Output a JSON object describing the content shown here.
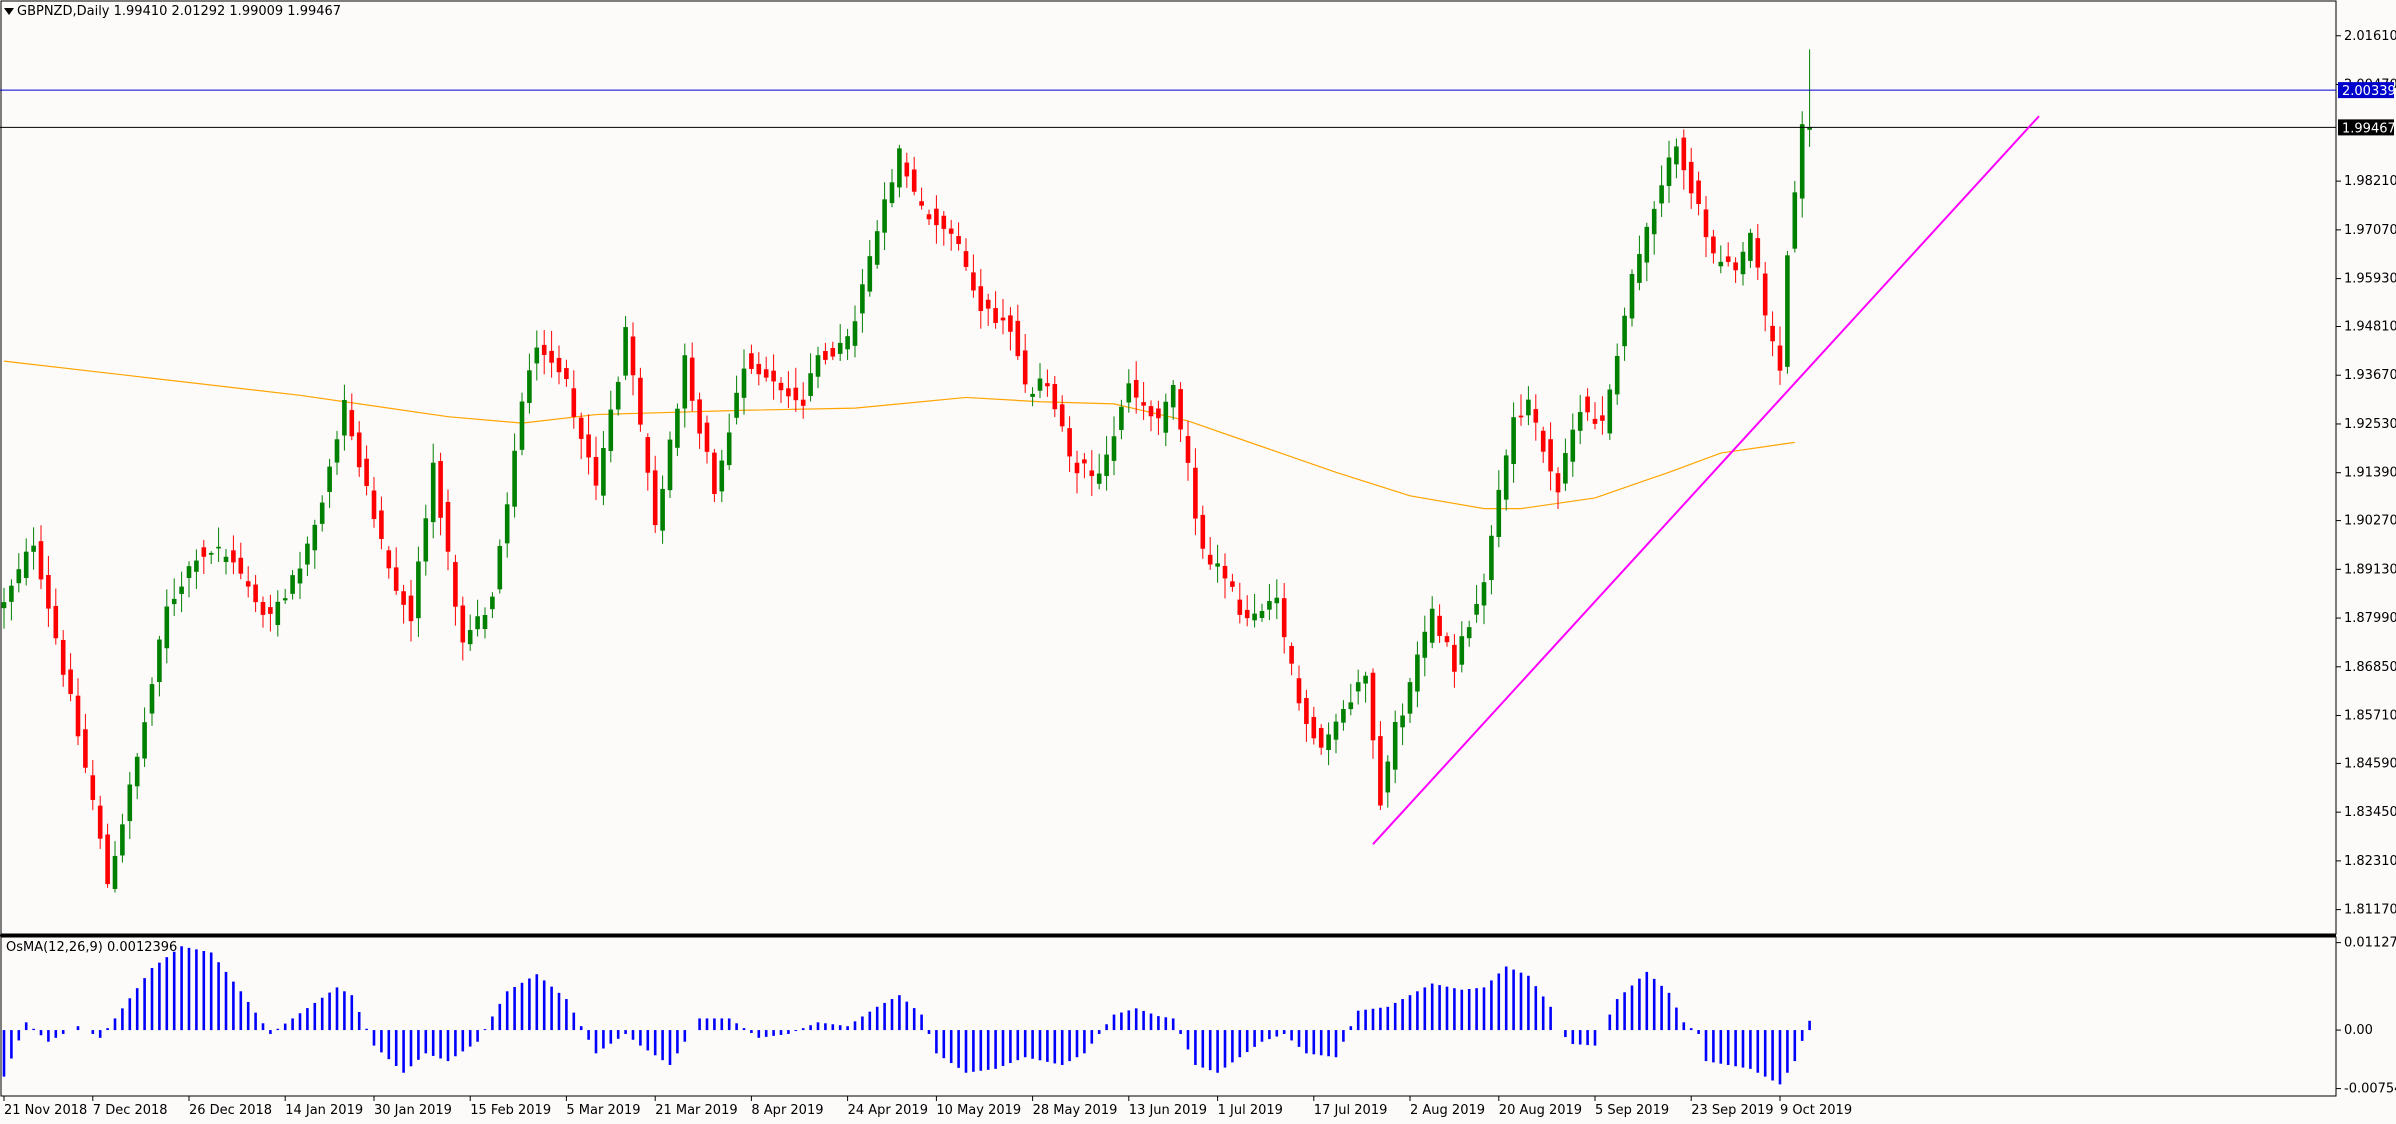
{
  "header": {
    "symbol_info": "GBPNZD,Daily  1.99410 2.01292 1.99009 1.99467"
  },
  "colors": {
    "background": "#fdfafa",
    "bull": "#008000",
    "bear": "#ff0000",
    "ma": "#ffa500",
    "trendline": "#ff00ff",
    "hline_blue": "#0000cd",
    "hline_black": "#000000",
    "osma": "#0000ff"
  },
  "chart_data": [
    {
      "type": "candlestick",
      "title": "GBPNZD,Daily",
      "ohlc_last": {
        "open": 1.9941,
        "high": 2.01292,
        "low": 1.99009,
        "close": 1.99467
      },
      "ylim": [
        1.806,
        2.024
      ],
      "y_ticks": [
        "2.01610",
        "2.00470",
        "1.98210",
        "1.97070",
        "1.95930",
        "1.94810",
        "1.93670",
        "1.92530",
        "1.91390",
        "1.90270",
        "1.89130",
        "1.87990",
        "1.86850",
        "1.85710",
        "1.84590",
        "1.83450",
        "1.82310",
        "1.81170"
      ],
      "x_tick_labels": [
        "21 Nov 2018",
        "7 Dec 2018",
        "26 Dec 2018",
        "14 Jan 2019",
        "30 Jan 2019",
        "15 Feb 2019",
        "5 Mar 2019",
        "21 Mar 2019",
        "8 Apr 2019",
        "24 Apr 2019",
        "10 May 2019",
        "28 May 2019",
        "13 Jun 2019",
        "1 Jul 2019",
        "17 Jul 2019",
        "2 Aug 2019",
        "20 Aug 2019",
        "5 Sep 2019",
        "23 Sep 2019",
        "9 Oct 2019"
      ],
      "x_tick_bar_index": [
        0,
        12,
        25,
        38,
        50,
        63,
        76,
        88,
        101,
        114,
        126,
        139,
        152,
        164,
        177,
        190,
        202,
        215,
        228,
        240
      ],
      "price_labels": [
        {
          "value": 2.00339,
          "text": "2.00339",
          "color": "#0000cd"
        },
        {
          "value": 1.99467,
          "text": "1.99467",
          "color": "#000000"
        }
      ],
      "horizontal_lines": [
        {
          "value": 2.00339,
          "color": "#0000cd"
        },
        {
          "value": 1.99467,
          "color": "#000000"
        }
      ],
      "trendline": {
        "from": {
          "bar": 185,
          "value": 1.827
        },
        "to": {
          "bar": 275,
          "value": 1.9973
        }
      },
      "ma_points": [
        [
          0,
          1.94
        ],
        [
          20,
          1.936
        ],
        [
          40,
          1.932
        ],
        [
          60,
          1.927
        ],
        [
          70,
          1.9255
        ],
        [
          80,
          1.9275
        ],
        [
          100,
          1.9285
        ],
        [
          115,
          1.929
        ],
        [
          130,
          1.9315
        ],
        [
          140,
          1.9305
        ],
        [
          150,
          1.93
        ],
        [
          160,
          1.926
        ],
        [
          170,
          1.92
        ],
        [
          180,
          1.914
        ],
        [
          190,
          1.9085
        ],
        [
          200,
          1.9055
        ],
        [
          205,
          1.9055
        ],
        [
          215,
          1.908
        ],
        [
          225,
          1.914
        ],
        [
          232,
          1.9185
        ],
        [
          242,
          1.921
        ]
      ],
      "anchors": [
        [
          0,
          1.883
        ],
        [
          4,
          1.898
        ],
        [
          8,
          1.868
        ],
        [
          12,
          1.837
        ],
        [
          14,
          1.818
        ],
        [
          18,
          1.847
        ],
        [
          22,
          1.882
        ],
        [
          26,
          1.895
        ],
        [
          30,
          1.895
        ],
        [
          36,
          1.879
        ],
        [
          42,
          1.9
        ],
        [
          46,
          1.93
        ],
        [
          52,
          1.89
        ],
        [
          55,
          1.88
        ],
        [
          58,
          1.916
        ],
        [
          62,
          1.873
        ],
        [
          66,
          1.885
        ],
        [
          70,
          1.93
        ],
        [
          72,
          1.945
        ],
        [
          76,
          1.935
        ],
        [
          80,
          1.91
        ],
        [
          84,
          1.946
        ],
        [
          88,
          1.902
        ],
        [
          92,
          1.94
        ],
        [
          96,
          1.91
        ],
        [
          100,
          1.94
        ],
        [
          104,
          1.935
        ],
        [
          108,
          1.93
        ],
        [
          110,
          1.941
        ],
        [
          114,
          1.944
        ],
        [
          118,
          1.97
        ],
        [
          121,
          1.988
        ],
        [
          124,
          1.975
        ],
        [
          128,
          1.97
        ],
        [
          132,
          1.953
        ],
        [
          136,
          1.948
        ],
        [
          138,
          1.933
        ],
        [
          141,
          1.935
        ],
        [
          144,
          1.917
        ],
        [
          148,
          1.912
        ],
        [
          152,
          1.934
        ],
        [
          156,
          1.925
        ],
        [
          158,
          1.934
        ],
        [
          162,
          1.895
        ],
        [
          165,
          1.889
        ],
        [
          168,
          1.879
        ],
        [
          172,
          1.883
        ],
        [
          175,
          1.86
        ],
        [
          178,
          1.85
        ],
        [
          182,
          1.861
        ],
        [
          184,
          1.868
        ],
        [
          186,
          1.838
        ],
        [
          188,
          1.854
        ],
        [
          190,
          1.864
        ],
        [
          193,
          1.882
        ],
        [
          196,
          1.869
        ],
        [
          200,
          1.89
        ],
        [
          204,
          1.927
        ],
        [
          206,
          1.93
        ],
        [
          210,
          1.91
        ],
        [
          213,
          1.93
        ],
        [
          216,
          1.925
        ],
        [
          220,
          1.96
        ],
        [
          224,
          1.98
        ],
        [
          226,
          1.992
        ],
        [
          229,
          1.975
        ],
        [
          231,
          1.964
        ],
        [
          234,
          1.96
        ],
        [
          236,
          1.97
        ],
        [
          238,
          1.95
        ],
        [
          240,
          1.938
        ],
        [
          241,
          1.965
        ],
        [
          243,
          1.995
        ],
        [
          244,
          1.9947
        ]
      ],
      "last_bar_index": 244
    },
    {
      "type": "bar",
      "title": "OsMA(12,26,9) 0.0012396",
      "ylim": [
        -0.0085,
        0.012
      ],
      "y_ticks": [
        "0.0112738",
        "0.00",
        "-0.007542"
      ],
      "anchors": [
        [
          0,
          -0.006
        ],
        [
          3,
          0.001
        ],
        [
          6,
          -0.0015
        ],
        [
          10,
          0.0005
        ],
        [
          13,
          -0.001
        ],
        [
          15,
          0.0015
        ],
        [
          20,
          0.008
        ],
        [
          24,
          0.0108
        ],
        [
          28,
          0.01
        ],
        [
          32,
          0.005
        ],
        [
          36,
          -0.0005
        ],
        [
          42,
          0.0035
        ],
        [
          45,
          0.0055
        ],
        [
          47,
          0.0045
        ],
        [
          50,
          -0.002
        ],
        [
          54,
          -0.0055
        ],
        [
          57,
          -0.003
        ],
        [
          60,
          -0.004
        ],
        [
          64,
          -0.0015
        ],
        [
          68,
          0.005
        ],
        [
          72,
          0.0072
        ],
        [
          76,
          0.004
        ],
        [
          80,
          -0.003
        ],
        [
          84,
          -0.0005
        ],
        [
          86,
          -0.002
        ],
        [
          90,
          -0.0045
        ],
        [
          94,
          0.0015
        ],
        [
          98,
          0.0015
        ],
        [
          102,
          -0.001
        ],
        [
          106,
          -0.0005
        ],
        [
          110,
          0.001
        ],
        [
          114,
          0.0005
        ],
        [
          118,
          0.003
        ],
        [
          121,
          0.0045
        ],
        [
          124,
          0.002
        ],
        [
          126,
          -0.003
        ],
        [
          130,
          -0.0055
        ],
        [
          134,
          -0.005
        ],
        [
          138,
          -0.0035
        ],
        [
          143,
          -0.0045
        ],
        [
          146,
          -0.003
        ],
        [
          150,
          0.002
        ],
        [
          153,
          0.0028
        ],
        [
          156,
          0.0018
        ],
        [
          158,
          0.0015
        ],
        [
          161,
          -0.0045
        ],
        [
          164,
          -0.0055
        ],
        [
          167,
          -0.0035
        ],
        [
          170,
          -0.0015
        ],
        [
          173,
          -0.0005
        ],
        [
          176,
          -0.003
        ],
        [
          180,
          -0.0035
        ],
        [
          183,
          0.0025
        ],
        [
          187,
          0.003
        ],
        [
          190,
          0.0045
        ],
        [
          193,
          0.006
        ],
        [
          197,
          0.0052
        ],
        [
          200,
          0.0055
        ],
        [
          203,
          0.0082
        ],
        [
          206,
          0.007
        ],
        [
          209,
          0.003
        ],
        [
          210,
          0.0
        ],
        [
          212,
          -0.0018
        ],
        [
          215,
          -0.002
        ],
        [
          218,
          0.004
        ],
        [
          222,
          0.0075
        ],
        [
          225,
          0.0048
        ],
        [
          227,
          0.001
        ],
        [
          229,
          -0.0005
        ],
        [
          230,
          -0.004
        ],
        [
          236,
          -0.005
        ],
        [
          240,
          -0.007
        ],
        [
          242,
          -0.004
        ],
        [
          244,
          0.0012
        ]
      ],
      "last_bar_index": 244
    }
  ]
}
